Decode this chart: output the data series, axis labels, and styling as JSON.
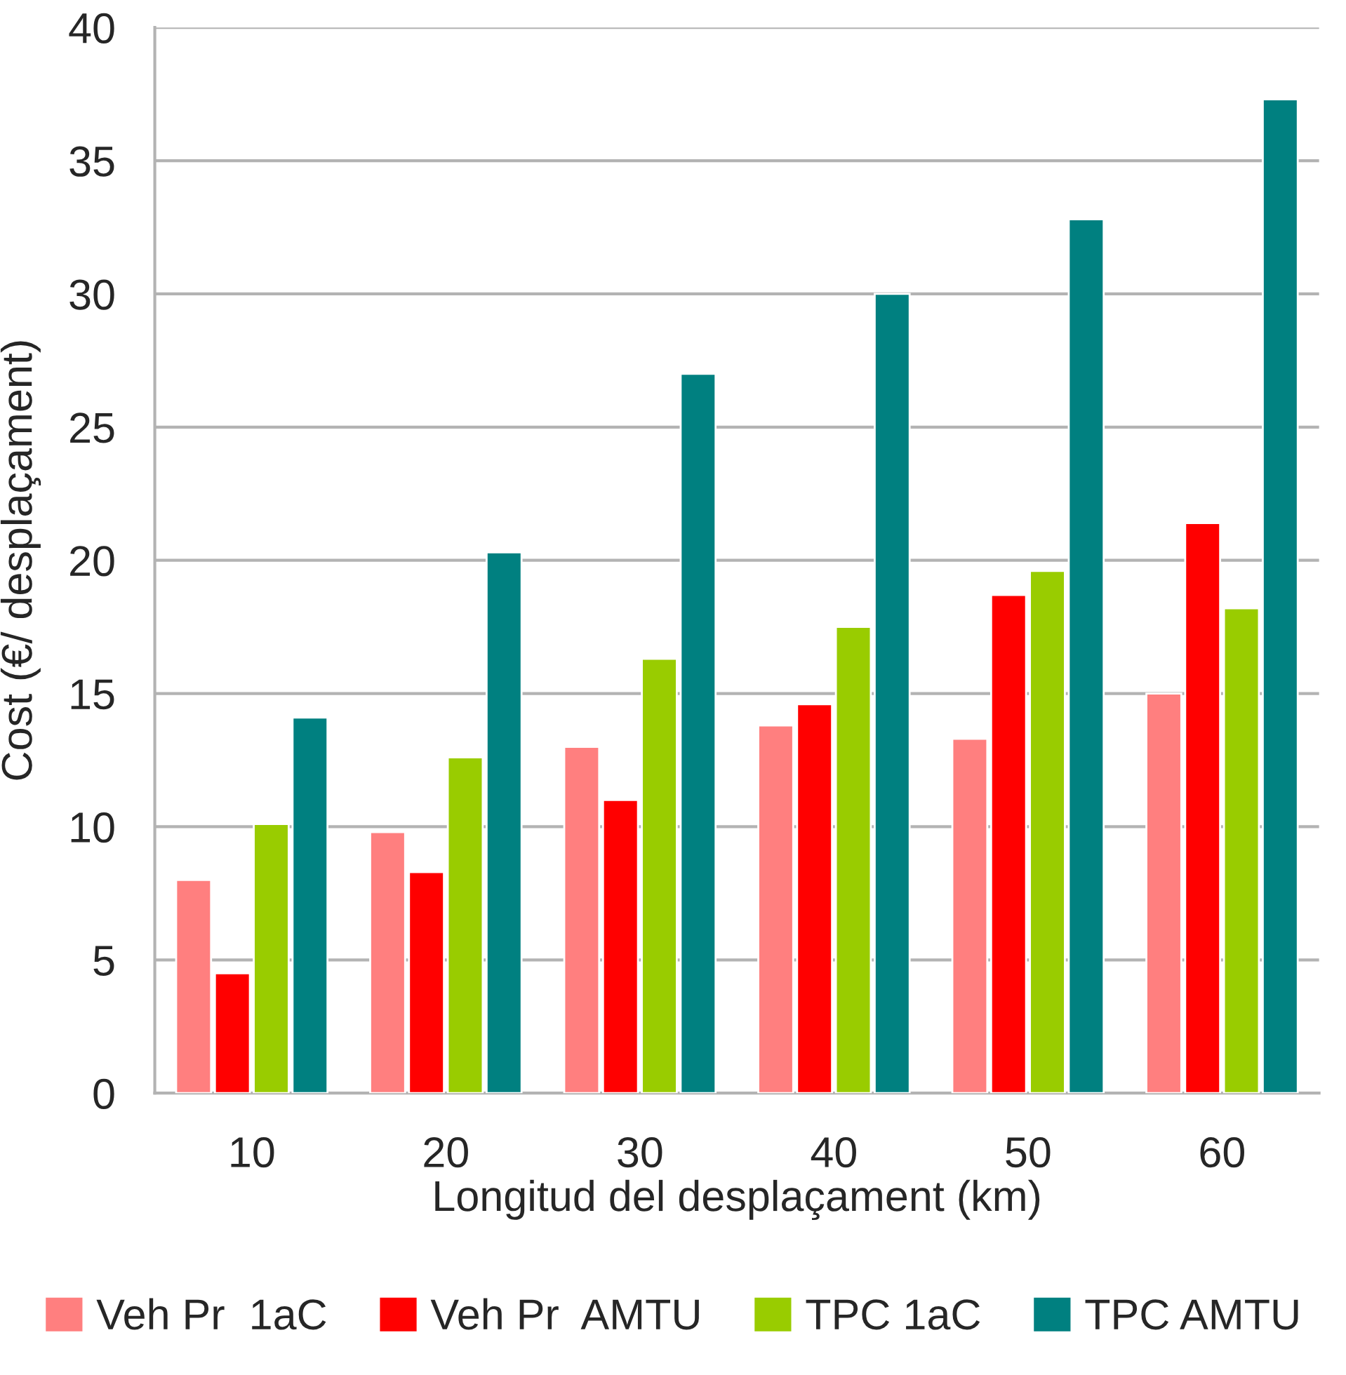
{
  "chart_data": {
    "type": "bar",
    "xlabel": "Longitud del desplaçament (km)",
    "ylabel": "Cost (€/ desplaçament)",
    "categories": [
      "10",
      "20",
      "30",
      "40",
      "50",
      "60"
    ],
    "series": [
      {
        "name": "Veh Pr  1aC",
        "color": "#ff7f7f",
        "values": [
          8.0,
          9.8,
          13.0,
          13.8,
          13.3,
          15.0
        ]
      },
      {
        "name": "Veh Pr  AMTU",
        "color": "#ff0000",
        "values": [
          4.5,
          8.3,
          11.0,
          14.6,
          18.7,
          21.4
        ]
      },
      {
        "name": "TPC 1aC",
        "color": "#99cc00",
        "values": [
          10.1,
          12.6,
          16.3,
          17.5,
          19.6,
          18.2
        ]
      },
      {
        "name": "TPC AMTU",
        "color": "#008080",
        "values": [
          14.1,
          20.3,
          27.0,
          30.0,
          32.8,
          37.3
        ]
      }
    ],
    "ylim": [
      0,
      40
    ],
    "yticks": [
      0,
      5,
      10,
      15,
      20,
      25,
      30,
      35,
      40
    ],
    "grid": "y",
    "legend": "bottom"
  }
}
